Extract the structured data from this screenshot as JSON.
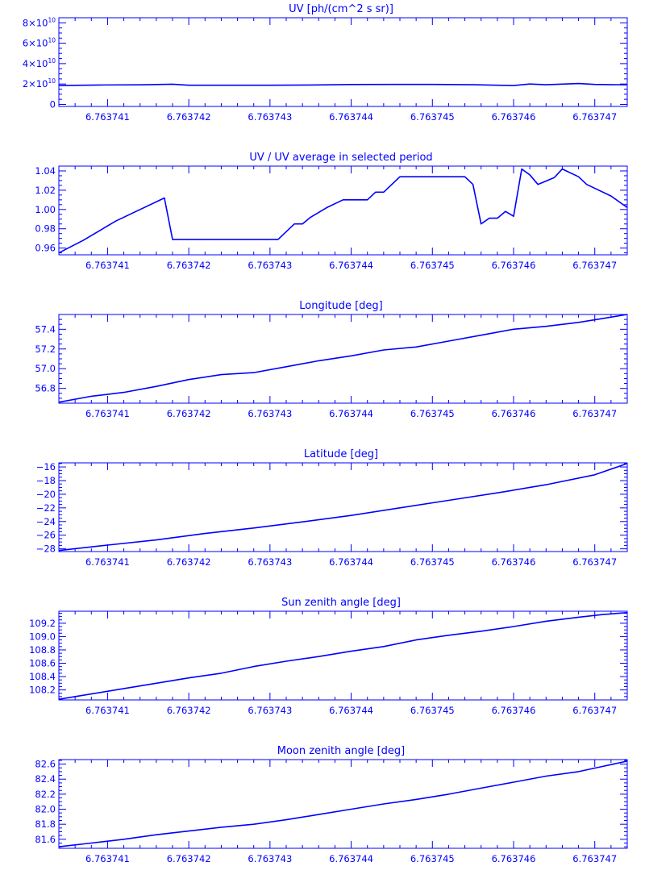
{
  "colors": {
    "line": "#0000ff",
    "background": "#ffffff"
  },
  "chart_data": [
    {
      "type": "line",
      "title": "UV [ph/(cm^2 s sr)]",
      "xlabel": "",
      "ylabel": "",
      "xlim": [
        6.7637404,
        6.7637474
      ],
      "ylim": [
        -2000000000.0,
        85000000000.0
      ],
      "xticks": [
        6.763741,
        6.763742,
        6.763743,
        6.763744,
        6.763745,
        6.763746,
        6.763747
      ],
      "xtick_labels": [
        "6.763741",
        "6.763742",
        "6.763743",
        "6.763744",
        "6.763745",
        "6.763746",
        "6.763747"
      ],
      "yticks": [
        0,
        20000000000.0,
        40000000000.0,
        60000000000.0,
        80000000000.0
      ],
      "ytick_labels": [
        {
          "base": "0",
          "exp": ""
        },
        {
          "base": "2×10",
          "exp": "10"
        },
        {
          "base": "4×10",
          "exp": "10"
        },
        {
          "base": "6×10",
          "exp": "10"
        },
        {
          "base": "8×10",
          "exp": "10"
        }
      ],
      "yminor": 4,
      "grid": false,
      "x": [
        6.7637404,
        6.7637409,
        6.7637414,
        6.7637418,
        6.763742,
        6.7637425,
        6.763743,
        6.7637435,
        6.763744,
        6.7637445,
        6.763745,
        6.7637455,
        6.763746,
        6.7637462,
        6.7637464,
        6.7637468,
        6.763747,
        6.7637474
      ],
      "y": [
        18500000000.0,
        19000000000.0,
        19200000000.0,
        19800000000.0,
        18800000000.0,
        18800000000.0,
        18800000000.0,
        19000000000.0,
        19500000000.0,
        19600000000.0,
        19600000000.0,
        19300000000.0,
        18500000000.0,
        20000000000.0,
        19300000000.0,
        20500000000.0,
        19600000000.0,
        19200000000.0
      ]
    },
    {
      "type": "line",
      "title": "UV / UV average in selected period",
      "xlabel": "",
      "ylabel": "",
      "xlim": [
        6.7637404,
        6.7637474
      ],
      "ylim": [
        0.953,
        1.045
      ],
      "xticks": [
        6.763741,
        6.763742,
        6.763743,
        6.763744,
        6.763745,
        6.763746,
        6.763747
      ],
      "xtick_labels": [
        "6.763741",
        "6.763742",
        "6.763743",
        "6.763744",
        "6.763745",
        "6.763746",
        "6.763747"
      ],
      "yticks": [
        0.96,
        0.98,
        1.0,
        1.02,
        1.04
      ],
      "ytick_labels": [
        "0.96",
        "0.98",
        "1.00",
        "1.02",
        "1.04"
      ],
      "yminor": 4,
      "grid": false,
      "x": [
        6.7637404,
        6.7637407,
        6.7637411,
        6.7637417,
        6.7637418,
        6.7637431,
        6.7637433,
        6.7637434,
        6.7637435,
        6.7637437,
        6.7637439,
        6.7637441,
        6.7637442,
        6.7637443,
        6.7637444,
        6.7637446,
        6.7637454,
        6.7637455,
        6.7637456,
        6.7637457,
        6.7637458,
        6.7637459,
        6.763746,
        6.7637461,
        6.7637462,
        6.7637463,
        6.7637465,
        6.7637466,
        6.7637468,
        6.7637469,
        6.7637472,
        6.7637474
      ],
      "y": [
        0.955,
        0.968,
        0.988,
        1.012,
        0.969,
        0.969,
        0.985,
        0.985,
        0.992,
        1.002,
        1.01,
        1.01,
        1.01,
        1.018,
        1.018,
        1.034,
        1.034,
        1.026,
        0.985,
        0.991,
        0.991,
        0.998,
        0.993,
        1.042,
        1.036,
        1.026,
        1.033,
        1.042,
        1.034,
        1.026,
        1.014,
        1.002
      ]
    },
    {
      "type": "line",
      "title": "Longitude [deg]",
      "xlabel": "",
      "ylabel": "",
      "xlim": [
        6.7637404,
        6.7637474
      ],
      "ylim": [
        56.65,
        57.55
      ],
      "xticks": [
        6.763741,
        6.763742,
        6.763743,
        6.763744,
        6.763745,
        6.763746,
        6.763747
      ],
      "xtick_labels": [
        "6.763741",
        "6.763742",
        "6.763743",
        "6.763744",
        "6.763745",
        "6.763746",
        "6.763747"
      ],
      "yticks": [
        56.8,
        57.0,
        57.2,
        57.4
      ],
      "ytick_labels": [
        "56.8",
        "57.0",
        "57.2",
        "57.4"
      ],
      "yminor": 4,
      "grid": false,
      "x": [
        6.7637404,
        6.7637408,
        6.7637412,
        6.7637416,
        6.763742,
        6.7637424,
        6.7637428,
        6.7637432,
        6.7637436,
        6.763744,
        6.7637444,
        6.7637448,
        6.7637452,
        6.7637456,
        6.763746,
        6.7637464,
        6.7637468,
        6.7637471,
        6.7637474
      ],
      "y": [
        56.66,
        56.72,
        56.76,
        56.82,
        56.89,
        56.94,
        56.96,
        57.02,
        57.08,
        57.13,
        57.19,
        57.22,
        57.28,
        57.34,
        57.4,
        57.43,
        57.47,
        57.51,
        57.55
      ]
    },
    {
      "type": "line",
      "title": "Latitude [deg]",
      "xlabel": "",
      "ylabel": "",
      "xlim": [
        6.7637404,
        6.7637474
      ],
      "ylim": [
        -28.4,
        -15.4
      ],
      "xticks": [
        6.763741,
        6.763742,
        6.763743,
        6.763744,
        6.763745,
        6.763746,
        6.763747
      ],
      "xtick_labels": [
        "6.763741",
        "6.763742",
        "6.763743",
        "6.763744",
        "6.763745",
        "6.763746",
        "6.763747"
      ],
      "yticks": [
        -28,
        -26,
        -24,
        -22,
        -20,
        -18,
        -16
      ],
      "ytick_labels": [
        "−28",
        "−26",
        "−24",
        "−22",
        "−20",
        "−18",
        "−16"
      ],
      "yminor": 4,
      "grid": false,
      "x": [
        6.7637404,
        6.763741,
        6.7637416,
        6.7637422,
        6.7637428,
        6.7637434,
        6.763744,
        6.7637446,
        6.7637452,
        6.7637458,
        6.7637464,
        6.763747,
        6.7637474
      ],
      "y": [
        -28.25,
        -27.45,
        -26.7,
        -25.75,
        -24.95,
        -24.05,
        -23.1,
        -22.0,
        -20.9,
        -19.8,
        -18.6,
        -17.15,
        -15.5
      ]
    },
    {
      "type": "line",
      "title": "Sun zenith angle [deg]",
      "xlabel": "",
      "ylabel": "",
      "xlim": [
        6.7637404,
        6.7637474
      ],
      "ylim": [
        108.05,
        109.38
      ],
      "xticks": [
        6.763741,
        6.763742,
        6.763743,
        6.763744,
        6.763745,
        6.763746,
        6.763747
      ],
      "xtick_labels": [
        "6.763741",
        "6.763742",
        "6.763743",
        "6.763744",
        "6.763745",
        "6.763746",
        "6.763747"
      ],
      "yticks": [
        108.2,
        108.4,
        108.6,
        108.8,
        109.0,
        109.2
      ],
      "ytick_labels": [
        "108.2",
        "108.4",
        "108.6",
        "108.8",
        "109.0",
        "109.2"
      ],
      "yminor": 4,
      "grid": false,
      "x": [
        6.7637404,
        6.7637408,
        6.7637412,
        6.7637416,
        6.763742,
        6.7637424,
        6.7637428,
        6.7637432,
        6.7637436,
        6.763744,
        6.7637444,
        6.7637448,
        6.7637452,
        6.7637456,
        6.763746,
        6.7637464,
        6.7637468,
        6.7637471,
        6.7637474
      ],
      "y": [
        108.06,
        108.14,
        108.22,
        108.3,
        108.38,
        108.45,
        108.55,
        108.63,
        108.7,
        108.78,
        108.85,
        108.95,
        109.02,
        109.08,
        109.15,
        109.23,
        109.29,
        109.33,
        109.36
      ]
    },
    {
      "type": "line",
      "title": "Moon zenith angle [deg]",
      "xlabel": "",
      "ylabel": "",
      "xlim": [
        6.7637404,
        6.7637474
      ],
      "ylim": [
        81.48,
        82.66
      ],
      "xticks": [
        6.763741,
        6.763742,
        6.763743,
        6.763744,
        6.763745,
        6.763746,
        6.763747
      ],
      "xtick_labels": [
        "6.763741",
        "6.763742",
        "6.763743",
        "6.763744",
        "6.763745",
        "6.763746",
        "6.763747"
      ],
      "yticks": [
        81.6,
        81.8,
        82.0,
        82.2,
        82.4,
        82.6
      ],
      "ytick_labels": [
        "81.6",
        "81.8",
        "82.0",
        "82.2",
        "82.4",
        "82.6"
      ],
      "yminor": 4,
      "grid": false,
      "x": [
        6.7637404,
        6.7637408,
        6.7637412,
        6.7637416,
        6.763742,
        6.7637424,
        6.7637428,
        6.7637432,
        6.7637436,
        6.763744,
        6.7637444,
        6.7637448,
        6.7637452,
        6.7637456,
        6.763746,
        6.7637464,
        6.7637468,
        6.7637471,
        6.7637474
      ],
      "y": [
        81.5,
        81.55,
        81.6,
        81.66,
        81.71,
        81.76,
        81.8,
        81.86,
        81.93,
        82.0,
        82.07,
        82.13,
        82.2,
        82.28,
        82.36,
        82.44,
        82.5,
        82.57,
        82.64
      ]
    }
  ]
}
